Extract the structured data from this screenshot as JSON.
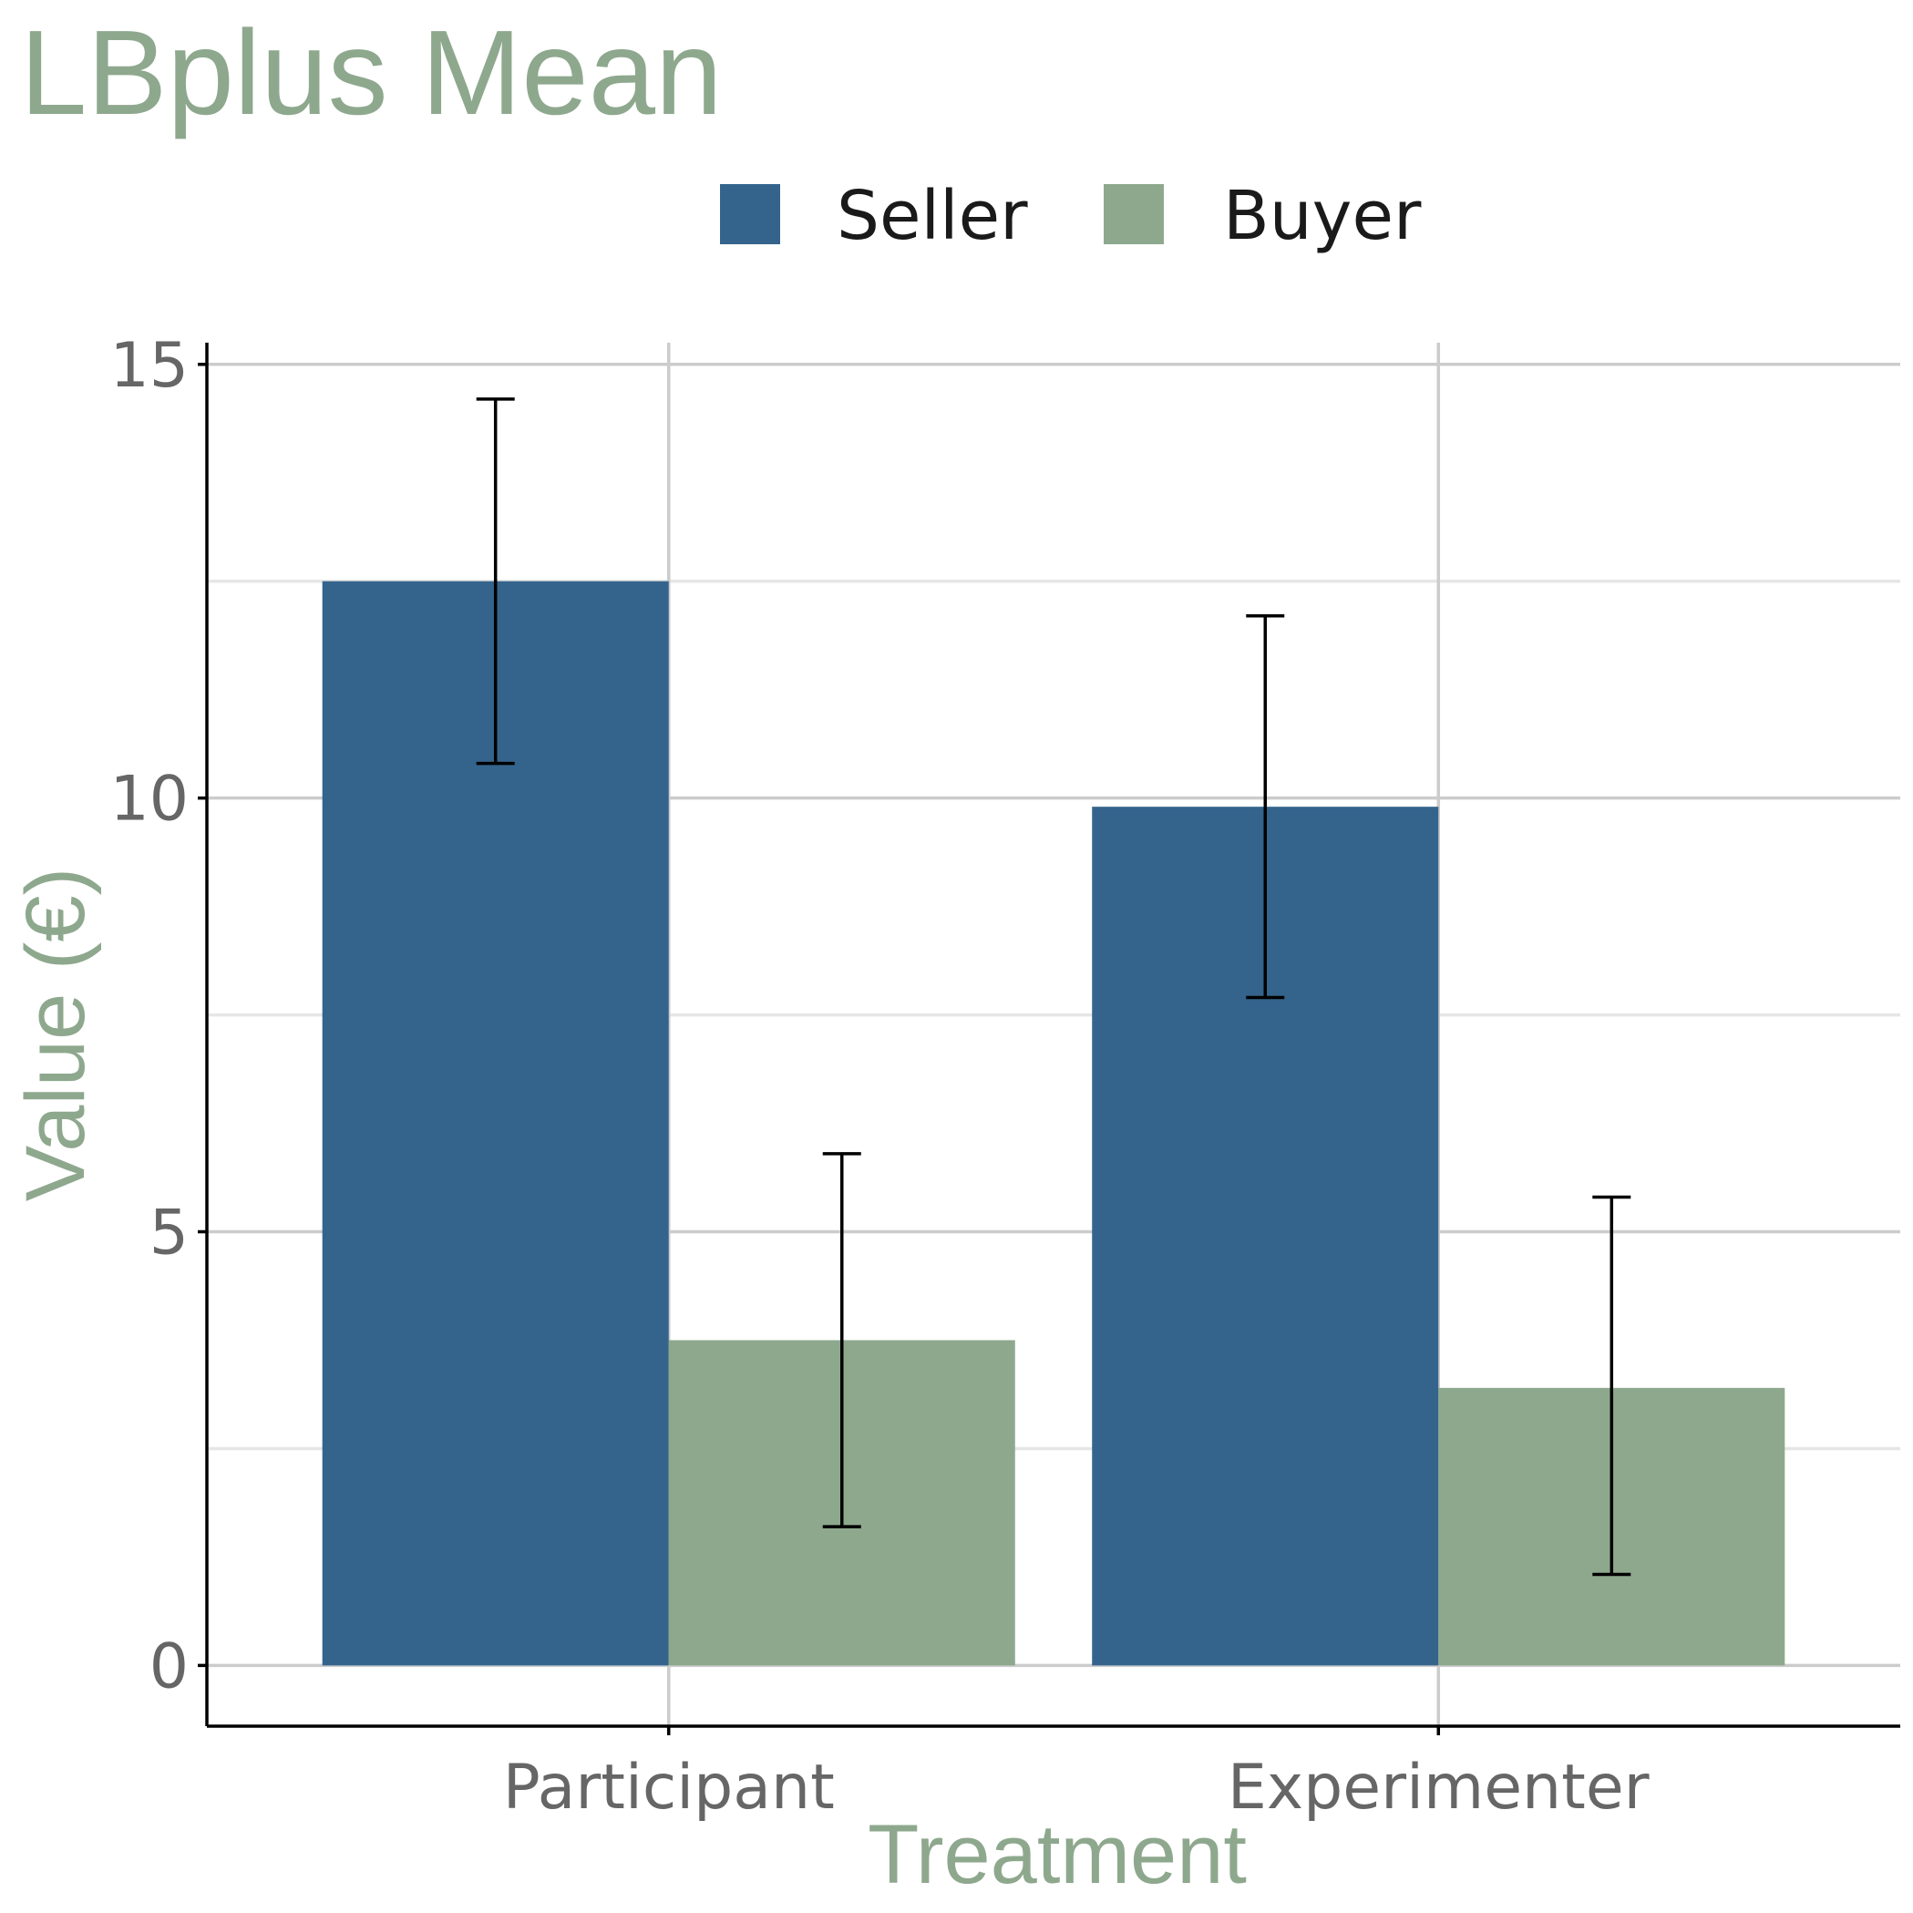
{
  "chart_data": {
    "type": "bar",
    "title": "LBplus Mean",
    "xlabel": "Treatment",
    "ylabel": "Value (€)",
    "categories": [
      "Participant",
      "Experimenter"
    ],
    "series": [
      {
        "name": "Seller",
        "color": "#34648c",
        "values": [
          12.5,
          9.9
        ],
        "err_low": [
          10.4,
          7.7
        ],
        "err_high": [
          14.6,
          12.1
        ]
      },
      {
        "name": "Buyer",
        "color": "#8ea88e",
        "values": [
          3.75,
          3.2
        ],
        "err_low": [
          1.6,
          1.05
        ],
        "err_high": [
          5.9,
          5.4
        ]
      }
    ],
    "ylim": [
      -0.7,
      15.25
    ],
    "yticks": [
      0,
      5,
      10,
      15
    ],
    "grid": true,
    "legend_position": "top"
  }
}
